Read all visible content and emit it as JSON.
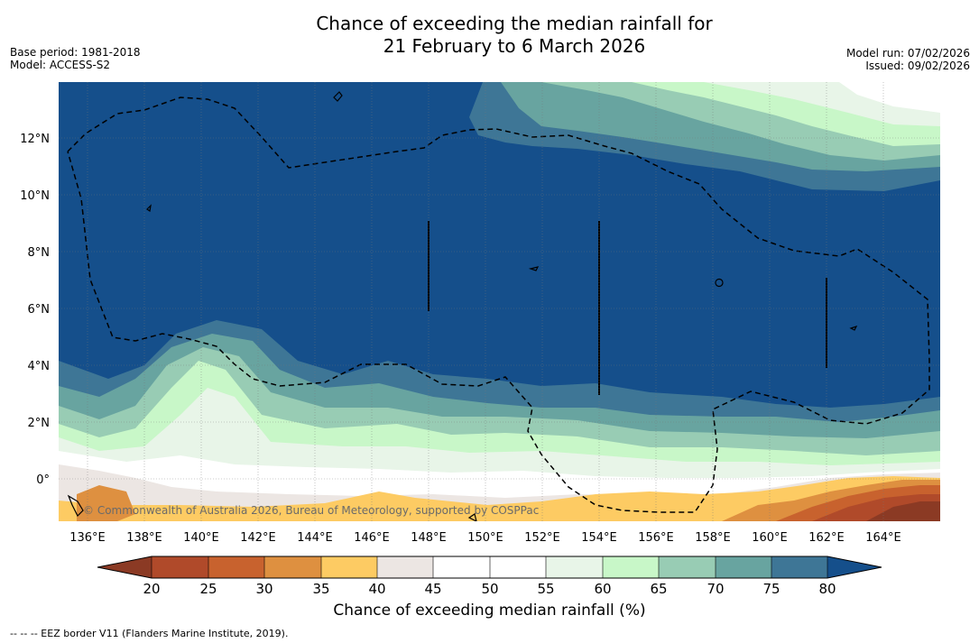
{
  "title": {
    "line1": "Chance of exceeding the median rainfall for",
    "line2": "21 February to 6 March 2026"
  },
  "meta": {
    "base_period": "Base period: 1981-2018",
    "model": "Model: ACCESS-S2",
    "model_run": "Model run: 07/02/2026",
    "issued": "Issued: 09/02/2026"
  },
  "axes": {
    "lon_ticks": [
      "136°E",
      "138°E",
      "140°E",
      "142°E",
      "144°E",
      "146°E",
      "148°E",
      "150°E",
      "152°E",
      "154°E",
      "156°E",
      "158°E",
      "160°E",
      "162°E",
      "164°E"
    ],
    "lat_ticks": [
      "12°N",
      "10°N",
      "8°N",
      "6°N",
      "4°N",
      "2°N",
      "0°"
    ]
  },
  "watermark": "© Commonwealth of Australia 2026, Bureau of Meteorology, supported by COSPPac",
  "colorbar": {
    "label": "Chance of exceeding median rainfall (%)",
    "ticks": [
      "20",
      "25",
      "30",
      "35",
      "40",
      "45",
      "50",
      "55",
      "60",
      "65",
      "70",
      "75",
      "80"
    ],
    "colors": [
      "#9a3a1e",
      "#b04a2a",
      "#c8622e",
      "#de9040",
      "#fdcb63",
      "#ece6e3",
      "#ffffff",
      "#ffffff",
      "#e8f5e8",
      "#c8f7c8",
      "#98ccb4",
      "#68a4a0",
      "#3e7696",
      "#154f8b"
    ],
    "under_color": "#8b3a24",
    "over_color": "#154f8b"
  },
  "footnote": "--  --  -- EEZ border V11 (Flanders Marine Institute, 2019)."
}
